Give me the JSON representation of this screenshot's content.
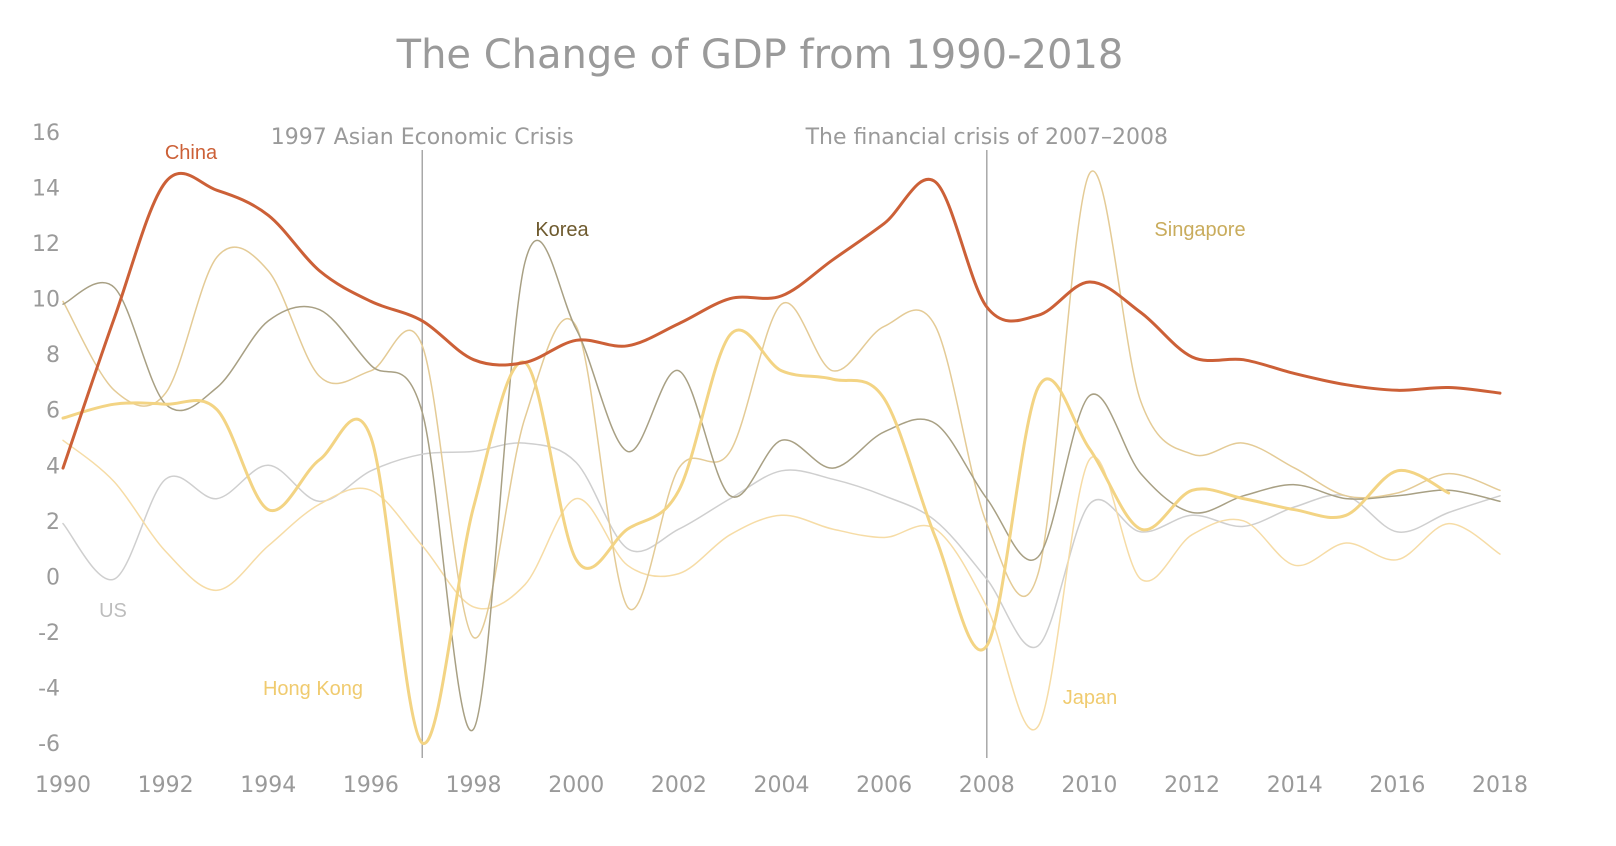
{
  "chart_data": {
    "type": "line",
    "title": "The Change of GDP from 1990-2018",
    "xlabel": "",
    "ylabel": "",
    "x": [
      1990,
      1991,
      1992,
      1993,
      1994,
      1995,
      1996,
      1997,
      1998,
      1999,
      2000,
      2001,
      2002,
      2003,
      2004,
      2005,
      2006,
      2007,
      2008,
      2009,
      2010,
      2011,
      2012,
      2013,
      2014,
      2015,
      2016,
      2017,
      2018
    ],
    "xticks": [
      "1990",
      "1992",
      "1994",
      "1996",
      "1998",
      "2000",
      "2002",
      "2004",
      "2006",
      "2008",
      "2010",
      "2012",
      "2014",
      "2016",
      "2018"
    ],
    "yticks": [
      "16",
      "14",
      "12",
      "10",
      "8",
      "6",
      "4",
      "2",
      "0",
      "-2",
      "-4",
      "-6"
    ],
    "xlim": [
      1990,
      2018
    ],
    "ylim": [
      -6,
      16
    ],
    "grid": false,
    "legend": "inline labels",
    "series": [
      {
        "name": "US",
        "color": "#cfcfcf",
        "width": 1.5,
        "values": [
          1.9,
          -0.1,
          3.5,
          2.8,
          4.0,
          2.7,
          3.8,
          4.4,
          4.5,
          4.8,
          4.1,
          1.0,
          1.7,
          2.8,
          3.8,
          3.5,
          2.9,
          2.0,
          -0.1,
          -2.5,
          2.6,
          1.6,
          2.2,
          1.8,
          2.5,
          2.9,
          1.6,
          2.3,
          2.9
        ]
      },
      {
        "name": "Japan",
        "color": "#f6dca6",
        "width": 1.5,
        "values": [
          4.9,
          3.4,
          0.9,
          -0.5,
          1.1,
          2.6,
          3.1,
          1.1,
          -1.1,
          -0.3,
          2.8,
          0.4,
          0.1,
          1.5,
          2.2,
          1.7,
          1.4,
          1.7,
          -1.1,
          -5.4,
          4.2,
          -0.1,
          1.5,
          2.0,
          0.4,
          1.2,
          0.6,
          1.9,
          0.8
        ]
      },
      {
        "name": "Singapore",
        "color": "#e4cb96",
        "width": 1.5,
        "values": [
          9.9,
          6.7,
          6.6,
          11.5,
          11.0,
          7.2,
          7.4,
          8.3,
          -2.2,
          5.7,
          9.0,
          -1.1,
          3.9,
          4.5,
          9.8,
          7.4,
          9.0,
          9.0,
          1.9,
          0.1,
          14.5,
          6.3,
          4.4,
          4.8,
          3.9,
          2.9,
          3.0,
          3.7,
          3.1
        ]
      },
      {
        "name": "Korea",
        "color": "#a8a084",
        "width": 1.5,
        "values": [
          9.8,
          10.4,
          6.2,
          6.8,
          9.2,
          9.6,
          7.6,
          5.9,
          -5.5,
          11.3,
          8.9,
          4.5,
          7.4,
          2.9,
          4.9,
          3.9,
          5.2,
          5.5,
          2.8,
          0.7,
          6.5,
          3.7,
          2.3,
          2.9,
          3.3,
          2.8,
          2.9,
          3.1,
          2.7
        ]
      },
      {
        "name": "Hong Kong",
        "color": "#f3d484",
        "width": 3,
        "values": [
          5.7,
          6.2,
          6.2,
          6.0,
          2.4,
          4.2,
          5.0,
          -6.0,
          2.5,
          7.7,
          0.6,
          1.7,
          3.1,
          8.7,
          7.4,
          7.1,
          6.4,
          1.4,
          -2.5,
          6.8,
          4.6,
          1.7,
          3.1,
          2.8,
          2.4,
          2.2,
          3.8,
          3.0,
          null
        ]
      },
      {
        "name": "China",
        "color": "#cc6037",
        "width": 3,
        "values": [
          3.9,
          9.3,
          14.2,
          13.9,
          13.0,
          11.0,
          9.9,
          9.2,
          7.8,
          7.7,
          8.5,
          8.3,
          9.1,
          10.0,
          10.1,
          11.4,
          12.7,
          14.2,
          9.7,
          9.4,
          10.6,
          9.5,
          7.9,
          7.8,
          7.3,
          6.9,
          6.7,
          6.8,
          6.6
        ]
      }
    ],
    "labels": [
      {
        "text": "China",
        "color": "#cc6037"
      },
      {
        "text": "Korea",
        "color": "#6e5a2e"
      },
      {
        "text": "Singapore",
        "color": "#c9ac5c"
      },
      {
        "text": "US",
        "color": "#bdbdbd"
      },
      {
        "text": "Hong Kong",
        "color": "#f0cb6f"
      },
      {
        "text": "Japan",
        "color": "#f0cb6f"
      }
    ],
    "events": [
      {
        "label": "1997 Asian Economic Crisis",
        "x": 1997
      },
      {
        "label": "The financial crisis of 2007–2008",
        "x": 2008
      }
    ]
  }
}
